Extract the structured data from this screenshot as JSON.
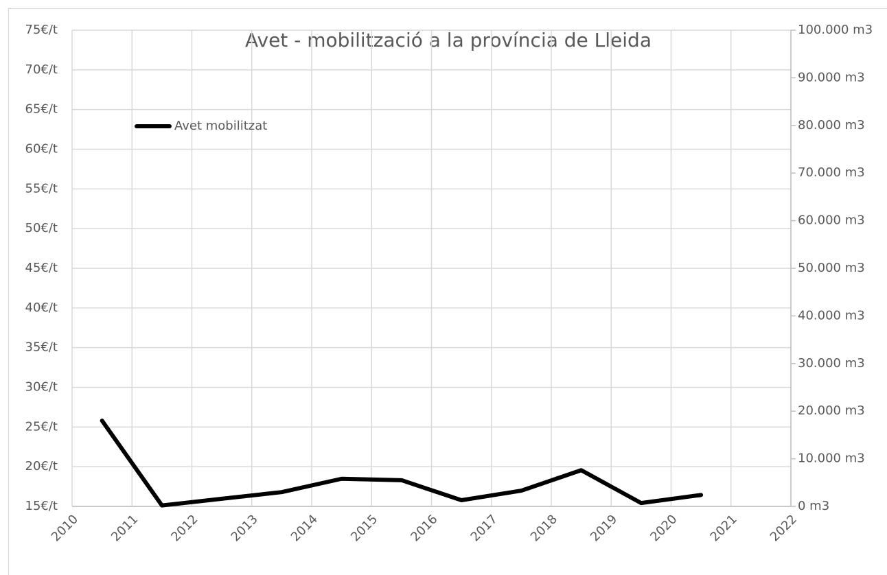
{
  "chart_data": {
    "type": "line",
    "title": "Avet - mobilització a la província de Lleida",
    "x": [
      2010.5,
      2011.5,
      2012.5,
      2013.5,
      2014.5,
      2015.5,
      2016.5,
      2017.5,
      2018.5,
      2019.5,
      2020.5
    ],
    "series": [
      {
        "name": "Avet mobilitzat",
        "color": "#000000",
        "axis": "y2",
        "values": [
          18000,
          200,
          1600,
          3000,
          5800,
          5500,
          1300,
          3300,
          7600,
          700,
          2400
        ]
      }
    ],
    "xlim": [
      2010,
      2022
    ],
    "xticks": [
      2010,
      2011,
      2012,
      2013,
      2014,
      2015,
      2016,
      2017,
      2018,
      2019,
      2020,
      2021,
      2022
    ],
    "ylim": [
      15,
      75
    ],
    "yticks": [
      {
        "value": 15,
        "label": "15€/t"
      },
      {
        "value": 20,
        "label": "20€/t"
      },
      {
        "value": 25,
        "label": "25€/t"
      },
      {
        "value": 30,
        "label": "30€/t"
      },
      {
        "value": 35,
        "label": "35€/t"
      },
      {
        "value": 40,
        "label": "40€/t"
      },
      {
        "value": 45,
        "label": "45€/t"
      },
      {
        "value": 50,
        "label": "50€/t"
      },
      {
        "value": 55,
        "label": "55€/t"
      },
      {
        "value": 60,
        "label": "60€/t"
      },
      {
        "value": 65,
        "label": "65€/t"
      },
      {
        "value": 70,
        "label": "70€/t"
      },
      {
        "value": 75,
        "label": "75€/t"
      }
    ],
    "y2lim": [
      0,
      100000
    ],
    "y2ticks": [
      {
        "value": 0,
        "label": "0 m3"
      },
      {
        "value": 10000,
        "label": "10.000 m3"
      },
      {
        "value": 20000,
        "label": "20.000 m3"
      },
      {
        "value": 30000,
        "label": "30.000 m3"
      },
      {
        "value": 40000,
        "label": "40.000 m3"
      },
      {
        "value": 50000,
        "label": "50.000 m3"
      },
      {
        "value": 60000,
        "label": "60.000 m3"
      },
      {
        "value": 70000,
        "label": "70.000 m3"
      },
      {
        "value": 80000,
        "label": "80.000 m3"
      },
      {
        "value": 90000,
        "label": "90.000 m3"
      },
      {
        "value": 100000,
        "label": "100.000 m3"
      }
    ],
    "grid": true,
    "legend": "top-left"
  }
}
